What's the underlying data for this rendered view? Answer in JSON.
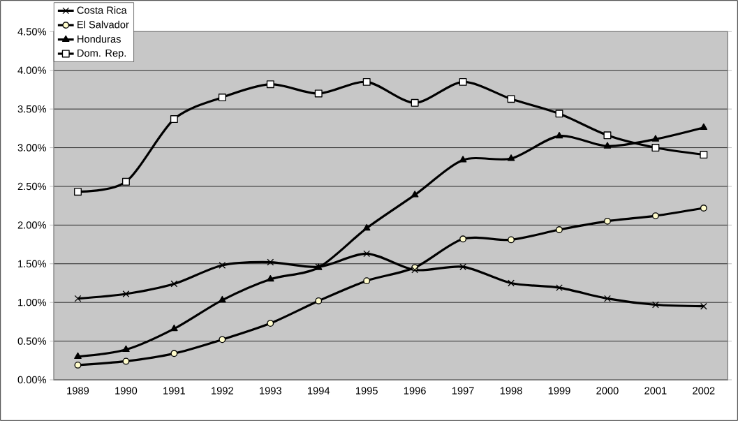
{
  "chart_data": {
    "type": "line",
    "categories": [
      "1989",
      "1990",
      "1991",
      "1992",
      "1993",
      "1994",
      "1995",
      "1996",
      "1997",
      "1998",
      "1999",
      "2000",
      "2001",
      "2002"
    ],
    "series": [
      {
        "name": "Costa Rica",
        "color": "#000000",
        "marker": "cross",
        "values": [
          1.05,
          1.11,
          1.24,
          1.48,
          1.52,
          1.46,
          1.63,
          1.42,
          1.46,
          1.25,
          1.19,
          1.05,
          0.97,
          0.95
        ]
      },
      {
        "name": "El Salvador",
        "color": "#000000",
        "marker": "circle",
        "values": [
          0.19,
          0.24,
          0.34,
          0.52,
          0.73,
          1.02,
          1.28,
          1.45,
          1.82,
          1.81,
          1.94,
          2.05,
          2.12,
          2.22
        ]
      },
      {
        "name": "Honduras",
        "color": "#000000",
        "marker": "triangle",
        "values": [
          0.3,
          0.39,
          0.66,
          1.03,
          1.3,
          1.45,
          1.96,
          2.39,
          2.84,
          2.86,
          3.15,
          3.02,
          3.11,
          3.26
        ]
      },
      {
        "name": "Dom. Rep.",
        "color": "#000000",
        "marker": "square",
        "values": [
          2.43,
          2.56,
          3.37,
          3.65,
          3.82,
          3.7,
          3.85,
          3.58,
          3.85,
          3.63,
          3.44,
          3.16,
          3.0,
          2.91
        ]
      }
    ],
    "ylim": [
      0,
      4.5
    ],
    "yticks": [
      {
        "value": 0,
        "label": "0.00%"
      },
      {
        "value": 0.5,
        "label": "0.50%"
      },
      {
        "value": 1,
        "label": "1.00%"
      },
      {
        "value": 1.5,
        "label": "1.50%"
      },
      {
        "value": 2,
        "label": "2.00%"
      },
      {
        "value": 2.5,
        "label": "2.50%"
      },
      {
        "value": 3,
        "label": "3.00%"
      },
      {
        "value": 3.5,
        "label": "3.50%"
      },
      {
        "value": 4,
        "label": "4.00%"
      },
      {
        "value": 4.5,
        "label": "4.50%"
      }
    ],
    "grid": "y",
    "legend": "top left",
    "line_style": "solid"
  }
}
